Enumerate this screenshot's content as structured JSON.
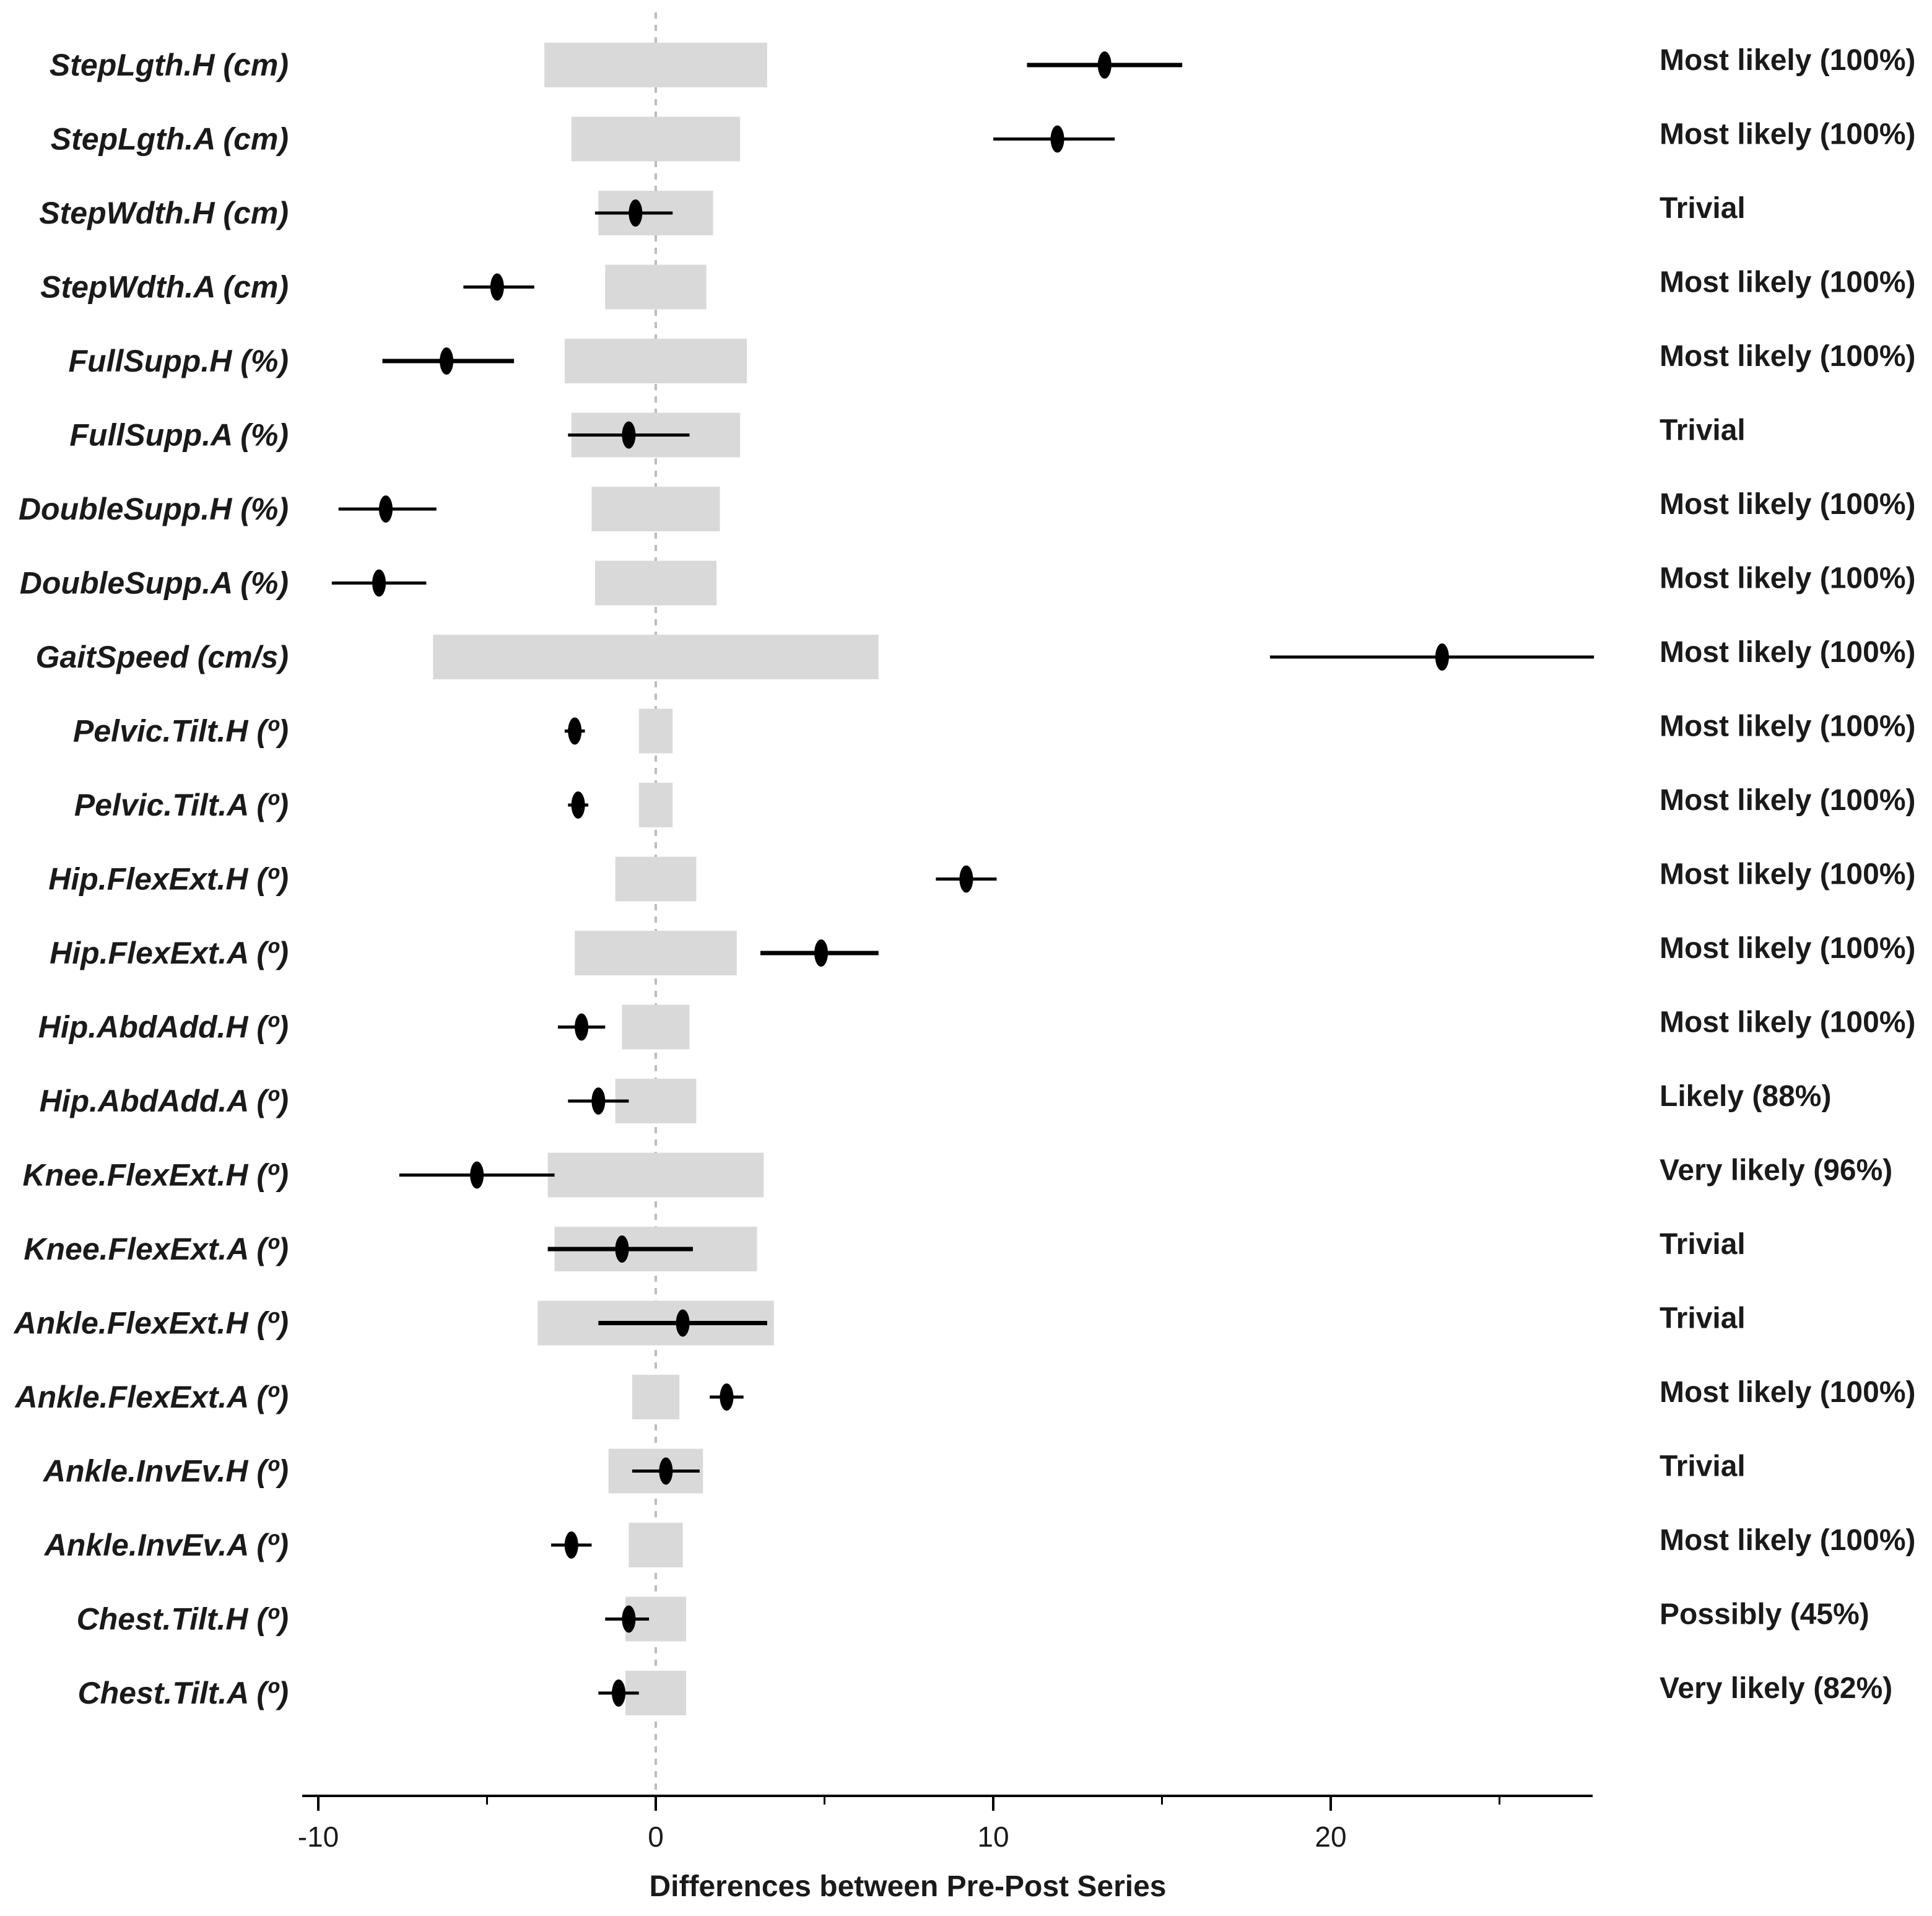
{
  "chart_data": {
    "type": "forest",
    "xlabel": "Differences between Pre-Post Series",
    "xlim": [
      -10.5,
      27.8
    ],
    "major_ticks": [
      -10,
      0,
      10,
      20
    ],
    "tick_labels": [
      "-10",
      "0",
      "10",
      "20"
    ],
    "minor_ticks": [
      -5,
      5,
      15,
      25
    ],
    "reference_line": 0,
    "colors": {
      "band": "#d9d9d9",
      "marker": "#000000",
      "axis": "#000000",
      "refline": "#bdbdbd"
    },
    "rows": [
      {
        "label": "StepLgth.H (cm)",
        "trivial": [
          -3.3,
          3.3
        ],
        "estimate": 13.3,
        "ci": [
          11.0,
          15.6
        ],
        "inference": "Most likely (100%)"
      },
      {
        "label": "StepLgth.A (cm)",
        "trivial": [
          -2.5,
          2.5
        ],
        "estimate": 11.9,
        "ci": [
          10.0,
          13.6
        ],
        "inference": "Most likely (100%)"
      },
      {
        "label": "StepWdth.H (cm)",
        "trivial": [
          -1.7,
          1.7
        ],
        "estimate": -0.6,
        "ci": [
          -1.8,
          0.5
        ],
        "inference": "Trivial"
      },
      {
        "label": "StepWdth.A (cm)",
        "trivial": [
          -1.5,
          1.5
        ],
        "estimate": -4.7,
        "ci": [
          -5.7,
          -3.6
        ],
        "inference": "Most likely (100%)"
      },
      {
        "label": "FullSupp.H (%)",
        "trivial": [
          -2.7,
          2.7
        ],
        "estimate": -6.2,
        "ci": [
          -8.1,
          -4.2
        ],
        "inference": "Most likely (100%)"
      },
      {
        "label": "FullSupp.A (%)",
        "trivial": [
          -2.5,
          2.5
        ],
        "estimate": -0.8,
        "ci": [
          -2.6,
          1.0
        ],
        "inference": "Trivial"
      },
      {
        "label": "DoubleSupp.H (%)",
        "trivial": [
          -1.9,
          1.9
        ],
        "estimate": -8.0,
        "ci": [
          -9.4,
          -6.5
        ],
        "inference": "Most likely (100%)"
      },
      {
        "label": "DoubleSupp.A (%)",
        "trivial": [
          -1.8,
          1.8
        ],
        "estimate": -8.2,
        "ci": [
          -9.6,
          -6.8
        ],
        "inference": "Most likely (100%)"
      },
      {
        "label": "GaitSpeed (cm/s)",
        "trivial": [
          -6.6,
          6.6
        ],
        "estimate": 23.3,
        "ci": [
          18.2,
          27.8
        ],
        "inference": "Most likely (100%)"
      },
      {
        "label": "Pelvic.Tilt.H (º)",
        "trivial": [
          -0.5,
          0.5
        ],
        "estimate": -2.4,
        "ci": [
          -2.7,
          -2.1
        ],
        "inference": "Most likely (100%)"
      },
      {
        "label": "Pelvic.Tilt.A (º)",
        "trivial": [
          -0.5,
          0.5
        ],
        "estimate": -2.3,
        "ci": [
          -2.6,
          -2.0
        ],
        "inference": "Most likely (100%)"
      },
      {
        "label": "Hip.FlexExt.H (º)",
        "trivial": [
          -1.2,
          1.2
        ],
        "estimate": 9.2,
        "ci": [
          8.3,
          10.1
        ],
        "inference": "Most likely (100%)"
      },
      {
        "label": "Hip.FlexExt.A (º)",
        "trivial": [
          -2.4,
          2.4
        ],
        "estimate": 4.9,
        "ci": [
          3.1,
          6.6
        ],
        "inference": "Most likely (100%)"
      },
      {
        "label": "Hip.AbdAdd.H (º)",
        "trivial": [
          -1.0,
          1.0
        ],
        "estimate": -2.2,
        "ci": [
          -2.9,
          -1.5
        ],
        "inference": "Most likely (100%)"
      },
      {
        "label": "Hip.AbdAdd.A (º)",
        "trivial": [
          -1.2,
          1.2
        ],
        "estimate": -1.7,
        "ci": [
          -2.6,
          -0.8
        ],
        "inference": "Likely (88%)"
      },
      {
        "label": "Knee.FlexExt.H (º)",
        "trivial": [
          -3.2,
          3.2
        ],
        "estimate": -5.3,
        "ci": [
          -7.6,
          -3.0
        ],
        "inference": "Very likely (96%)"
      },
      {
        "label": "Knee.FlexExt.A (º)",
        "trivial": [
          -3.0,
          3.0
        ],
        "estimate": -1.0,
        "ci": [
          -3.2,
          1.1
        ],
        "inference": "Trivial"
      },
      {
        "label": "Ankle.FlexExt.H (º)",
        "trivial": [
          -3.5,
          3.5
        ],
        "estimate": 0.8,
        "ci": [
          -1.7,
          3.3
        ],
        "inference": "Trivial"
      },
      {
        "label": "Ankle.FlexExt.A (º)",
        "trivial": [
          -0.7,
          0.7
        ],
        "estimate": 2.1,
        "ci": [
          1.6,
          2.6
        ],
        "inference": "Most likely (100%)"
      },
      {
        "label": "Ankle.InvEv.H (º)",
        "trivial": [
          -1.4,
          1.4
        ],
        "estimate": 0.3,
        "ci": [
          -0.7,
          1.3
        ],
        "inference": "Trivial"
      },
      {
        "label": "Ankle.InvEv.A (º)",
        "trivial": [
          -0.8,
          0.8
        ],
        "estimate": -2.5,
        "ci": [
          -3.1,
          -1.9
        ],
        "inference": "Most likely (100%)"
      },
      {
        "label": "Chest.Tilt.H (º)",
        "trivial": [
          -0.9,
          0.9
        ],
        "estimate": -0.8,
        "ci": [
          -1.5,
          -0.2
        ],
        "inference": "Possibly (45%)"
      },
      {
        "label": "Chest.Tilt.A (º)",
        "trivial": [
          -0.9,
          0.9
        ],
        "estimate": -1.1,
        "ci": [
          -1.7,
          -0.5
        ],
        "inference": "Very likely (82%)"
      }
    ]
  }
}
